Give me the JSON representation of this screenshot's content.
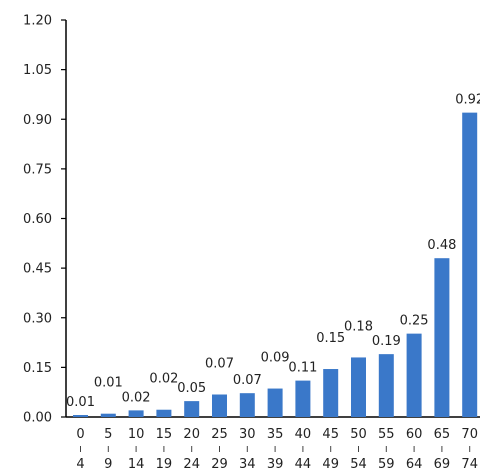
{
  "chart_data": {
    "type": "bar",
    "categories": [
      {
        "top": "0",
        "bottom": "4"
      },
      {
        "top": "5",
        "bottom": "9"
      },
      {
        "top": "10",
        "bottom": "14"
      },
      {
        "top": "15",
        "bottom": "19"
      },
      {
        "top": "20",
        "bottom": "24"
      },
      {
        "top": "25",
        "bottom": "29"
      },
      {
        "top": "30",
        "bottom": "34"
      },
      {
        "top": "35",
        "bottom": "39"
      },
      {
        "top": "40",
        "bottom": "44"
      },
      {
        "top": "45",
        "bottom": "49"
      },
      {
        "top": "50",
        "bottom": "54"
      },
      {
        "top": "55",
        "bottom": "59"
      },
      {
        "top": "60",
        "bottom": "64"
      },
      {
        "top": "65",
        "bottom": "69"
      },
      {
        "top": "70",
        "bottom": "74"
      }
    ],
    "values": [
      0.006,
      0.01,
      0.02,
      0.022,
      0.048,
      0.068,
      0.072,
      0.086,
      0.11,
      0.145,
      0.18,
      0.19,
      0.252,
      0.48,
      0.92
    ],
    "data_labels": [
      "0.01",
      "0.01",
      "0.02",
      "0.02",
      "0.05",
      "0.07",
      "0.07",
      "0.09",
      "0.11",
      "0.15",
      "0.18",
      "0.19",
      "0.25",
      "0.48",
      "0.92"
    ],
    "yticks": [
      "0.00",
      "0.15",
      "0.30",
      "0.45",
      "0.60",
      "0.75",
      "0.90",
      "1.05",
      "1.20"
    ],
    "ylim": [
      0,
      1.2
    ],
    "title": "",
    "xlabel": "",
    "ylabel": "",
    "bar_color": "#3a78c9",
    "grid": false
  }
}
